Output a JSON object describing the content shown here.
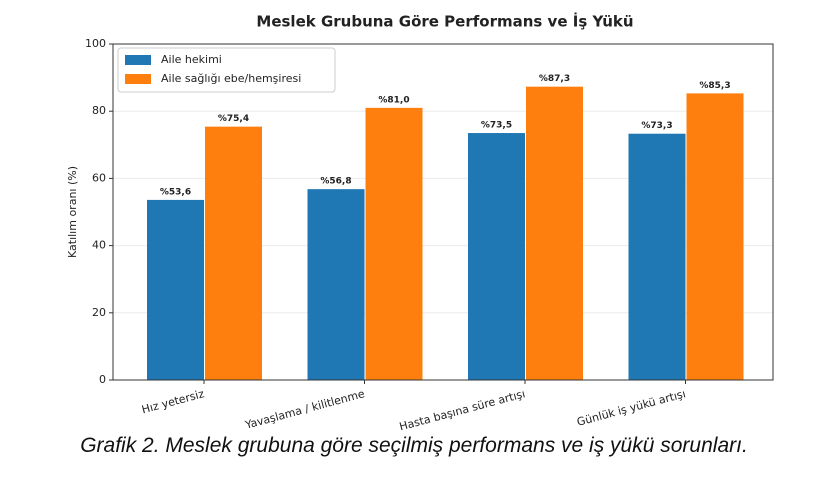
{
  "chart_data": {
    "type": "bar",
    "title": "Meslek Grubuna Göre Performans ve İş Yükü",
    "y_label": "Katılım oranı (%)",
    "categories": [
      "Hız yetersiz",
      "Yavaşlama / kilitlenme",
      "Hasta başına süre artışı",
      "Günlük iş yükü artışı"
    ],
    "series": [
      {
        "name": "Aile hekimi",
        "color": "#1f77b4",
        "values": [
          53.6,
          56.8,
          73.5,
          73.3
        ],
        "value_labels": [
          "%53,6",
          "%56,8",
          "%73,5",
          "%73,3"
        ]
      },
      {
        "name": "Aile sağlığı ebe/hemşiresi",
        "color": "#ff7f0e",
        "values": [
          75.4,
          81.0,
          87.3,
          85.3
        ],
        "value_labels": [
          "%75,4",
          "%81,0",
          "%87,3",
          "%85,3"
        ]
      }
    ],
    "ylim": [
      0,
      100
    ],
    "yticks": [
      0,
      20,
      40,
      60,
      80,
      100
    ],
    "grid": true,
    "legend": "upper left",
    "caption": "Grafik 2. Meslek grubuna göre seçilmiş performans ve iş yükü sorunları."
  }
}
